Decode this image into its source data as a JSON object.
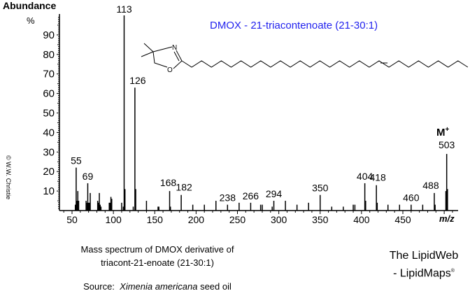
{
  "header": {
    "y_axis_title": "Abundance",
    "y_axis_unit": "%",
    "title": "DMOX - 21-triacontenoate (21-30:1)",
    "title_color": "#2222ee"
  },
  "annotations": {
    "molecular_ion_label": "M",
    "molecular_ion_sup": "+",
    "copyright": "© W.W. Christie",
    "x_axis_label": "m/z"
  },
  "caption": {
    "line1": "Mass spectrum of DMOX derivative of",
    "line2": "triacont-21-enoate (21-30:1)",
    "source_prefix": "Source:",
    "source_species": "Ximenia americana",
    "source_suffix": "seed oil"
  },
  "branding": {
    "line1": "The LipidWeb",
    "line2": "- LipidMaps",
    "mark": "®"
  },
  "structure": {
    "name": "DMOX derivative of 21-triacontenoic acid",
    "ring_atoms": [
      "N",
      "O"
    ]
  },
  "chart_data": {
    "type": "bar",
    "title": "DMOX - 21-triacontenoate (21-30:1)",
    "xlabel": "m/z",
    "ylabel": "Abundance %",
    "xlim": [
      38,
      520
    ],
    "ylim": [
      0,
      100
    ],
    "x_ticks": [
      50,
      100,
      150,
      200,
      250,
      300,
      350,
      400,
      450
    ],
    "y_ticks": [
      10,
      20,
      30,
      40,
      50,
      60,
      70,
      80,
      90
    ],
    "grid": false,
    "peaks": [
      {
        "mz": 54,
        "abundance": 3
      },
      {
        "mz": 55,
        "abundance": 22,
        "label": "55"
      },
      {
        "mz": 56,
        "abundance": 5
      },
      {
        "mz": 57,
        "abundance": 10
      },
      {
        "mz": 58,
        "abundance": 5
      },
      {
        "mz": 67,
        "abundance": 5
      },
      {
        "mz": 68,
        "abundance": 4
      },
      {
        "mz": 69,
        "abundance": 14,
        "label": "69"
      },
      {
        "mz": 70,
        "abundance": 4
      },
      {
        "mz": 71,
        "abundance": 4
      },
      {
        "mz": 72,
        "abundance": 9
      },
      {
        "mz": 81,
        "abundance": 5
      },
      {
        "mz": 82,
        "abundance": 4
      },
      {
        "mz": 83,
        "abundance": 9
      },
      {
        "mz": 84,
        "abundance": 3
      },
      {
        "mz": 85,
        "abundance": 2
      },
      {
        "mz": 95,
        "abundance": 4
      },
      {
        "mz": 96,
        "abundance": 4
      },
      {
        "mz": 97,
        "abundance": 7
      },
      {
        "mz": 98,
        "abundance": 6
      },
      {
        "mz": 110,
        "abundance": 4
      },
      {
        "mz": 112,
        "abundance": 2
      },
      {
        "mz": 113,
        "abundance": 100,
        "label": "113"
      },
      {
        "mz": 114,
        "abundance": 11
      },
      {
        "mz": 124,
        "abundance": 2
      },
      {
        "mz": 126,
        "abundance": 63,
        "label": "126"
      },
      {
        "mz": 127,
        "abundance": 11
      },
      {
        "mz": 140,
        "abundance": 5
      },
      {
        "mz": 154,
        "abundance": 2
      },
      {
        "mz": 155,
        "abundance": 2
      },
      {
        "mz": 168,
        "abundance": 10,
        "label": "168"
      },
      {
        "mz": 169,
        "abundance": 2
      },
      {
        "mz": 182,
        "abundance": 8,
        "label": "182"
      },
      {
        "mz": 196,
        "abundance": 3
      },
      {
        "mz": 210,
        "abundance": 3
      },
      {
        "mz": 224,
        "abundance": 5
      },
      {
        "mz": 238,
        "abundance": 3,
        "label": "238"
      },
      {
        "mz": 252,
        "abundance": 4
      },
      {
        "mz": 266,
        "abundance": 4,
        "label": "266"
      },
      {
        "mz": 278,
        "abundance": 3
      },
      {
        "mz": 280,
        "abundance": 3
      },
      {
        "mz": 292,
        "abundance": 2
      },
      {
        "mz": 294,
        "abundance": 5,
        "label": "294"
      },
      {
        "mz": 308,
        "abundance": 5
      },
      {
        "mz": 322,
        "abundance": 3
      },
      {
        "mz": 336,
        "abundance": 4
      },
      {
        "mz": 350,
        "abundance": 8,
        "label": "350"
      },
      {
        "mz": 364,
        "abundance": 2
      },
      {
        "mz": 378,
        "abundance": 2
      },
      {
        "mz": 390,
        "abundance": 3
      },
      {
        "mz": 392,
        "abundance": 3
      },
      {
        "mz": 404,
        "abundance": 14,
        "label": "404"
      },
      {
        "mz": 405,
        "abundance": 5
      },
      {
        "mz": 418,
        "abundance": 13,
        "label": "418"
      },
      {
        "mz": 419,
        "abundance": 4
      },
      {
        "mz": 432,
        "abundance": 3
      },
      {
        "mz": 446,
        "abundance": 3
      },
      {
        "mz": 460,
        "abundance": 3,
        "label": "460"
      },
      {
        "mz": 474,
        "abundance": 3
      },
      {
        "mz": 488,
        "abundance": 9,
        "label": "488"
      },
      {
        "mz": 489,
        "abundance": 3
      },
      {
        "mz": 502,
        "abundance": 10
      },
      {
        "mz": 503,
        "abundance": 29,
        "label": "503"
      },
      {
        "mz": 504,
        "abundance": 11
      }
    ]
  }
}
